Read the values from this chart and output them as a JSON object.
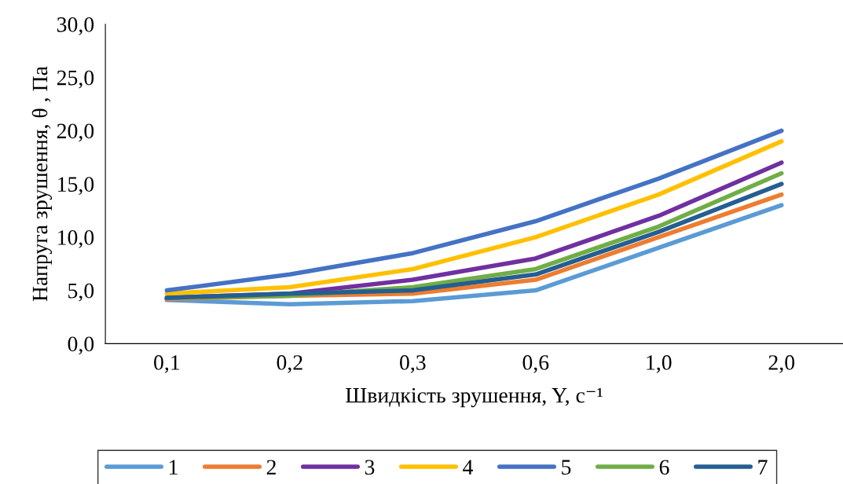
{
  "chart_data": {
    "type": "line",
    "xlabel": "Швидкість зрушення, Υ, с⁻¹",
    "ylabel": "Напруга зрушення, θ , Па",
    "categories": [
      "0,1",
      "0,2",
      "0,3",
      "0,6",
      "1,0",
      "2,0"
    ],
    "ylim": [
      0,
      30
    ],
    "yticks": [
      {
        "value": 0,
        "label": "0,0"
      },
      {
        "value": 5,
        "label": "5,0"
      },
      {
        "value": 10,
        "label": "10,0"
      },
      {
        "value": 15,
        "label": "15,0"
      },
      {
        "value": 20,
        "label": "20,0"
      },
      {
        "value": 25,
        "label": "25,0"
      },
      {
        "value": 30,
        "label": "30,0"
      }
    ],
    "grid": false,
    "legend": "bottom",
    "marker": "none",
    "line_style": "solid",
    "series": [
      {
        "name": "1",
        "color": "#5b9bd5",
        "values": [
          4.1,
          3.7,
          4.0,
          5.0,
          9.0,
          13.0
        ]
      },
      {
        "name": "2",
        "color": "#ed7d31",
        "values": [
          4.2,
          4.5,
          4.7,
          6.0,
          10.0,
          14.0
        ]
      },
      {
        "name": "3",
        "color": "#7030a0",
        "values": [
          4.3,
          4.7,
          6.0,
          8.0,
          12.0,
          17.0
        ]
      },
      {
        "name": "4",
        "color": "#ffc000",
        "values": [
          4.7,
          5.3,
          7.0,
          10.0,
          14.0,
          19.0
        ]
      },
      {
        "name": "5",
        "color": "#4472c4",
        "values": [
          5.0,
          6.5,
          8.5,
          11.5,
          15.5,
          20.0
        ]
      },
      {
        "name": "6",
        "color": "#70ad47",
        "values": [
          4.3,
          4.5,
          5.3,
          7.0,
          11.0,
          16.0
        ]
      },
      {
        "name": "7",
        "color": "#255e91",
        "values": [
          4.3,
          4.7,
          5.0,
          6.5,
          10.5,
          15.0
        ]
      }
    ]
  }
}
